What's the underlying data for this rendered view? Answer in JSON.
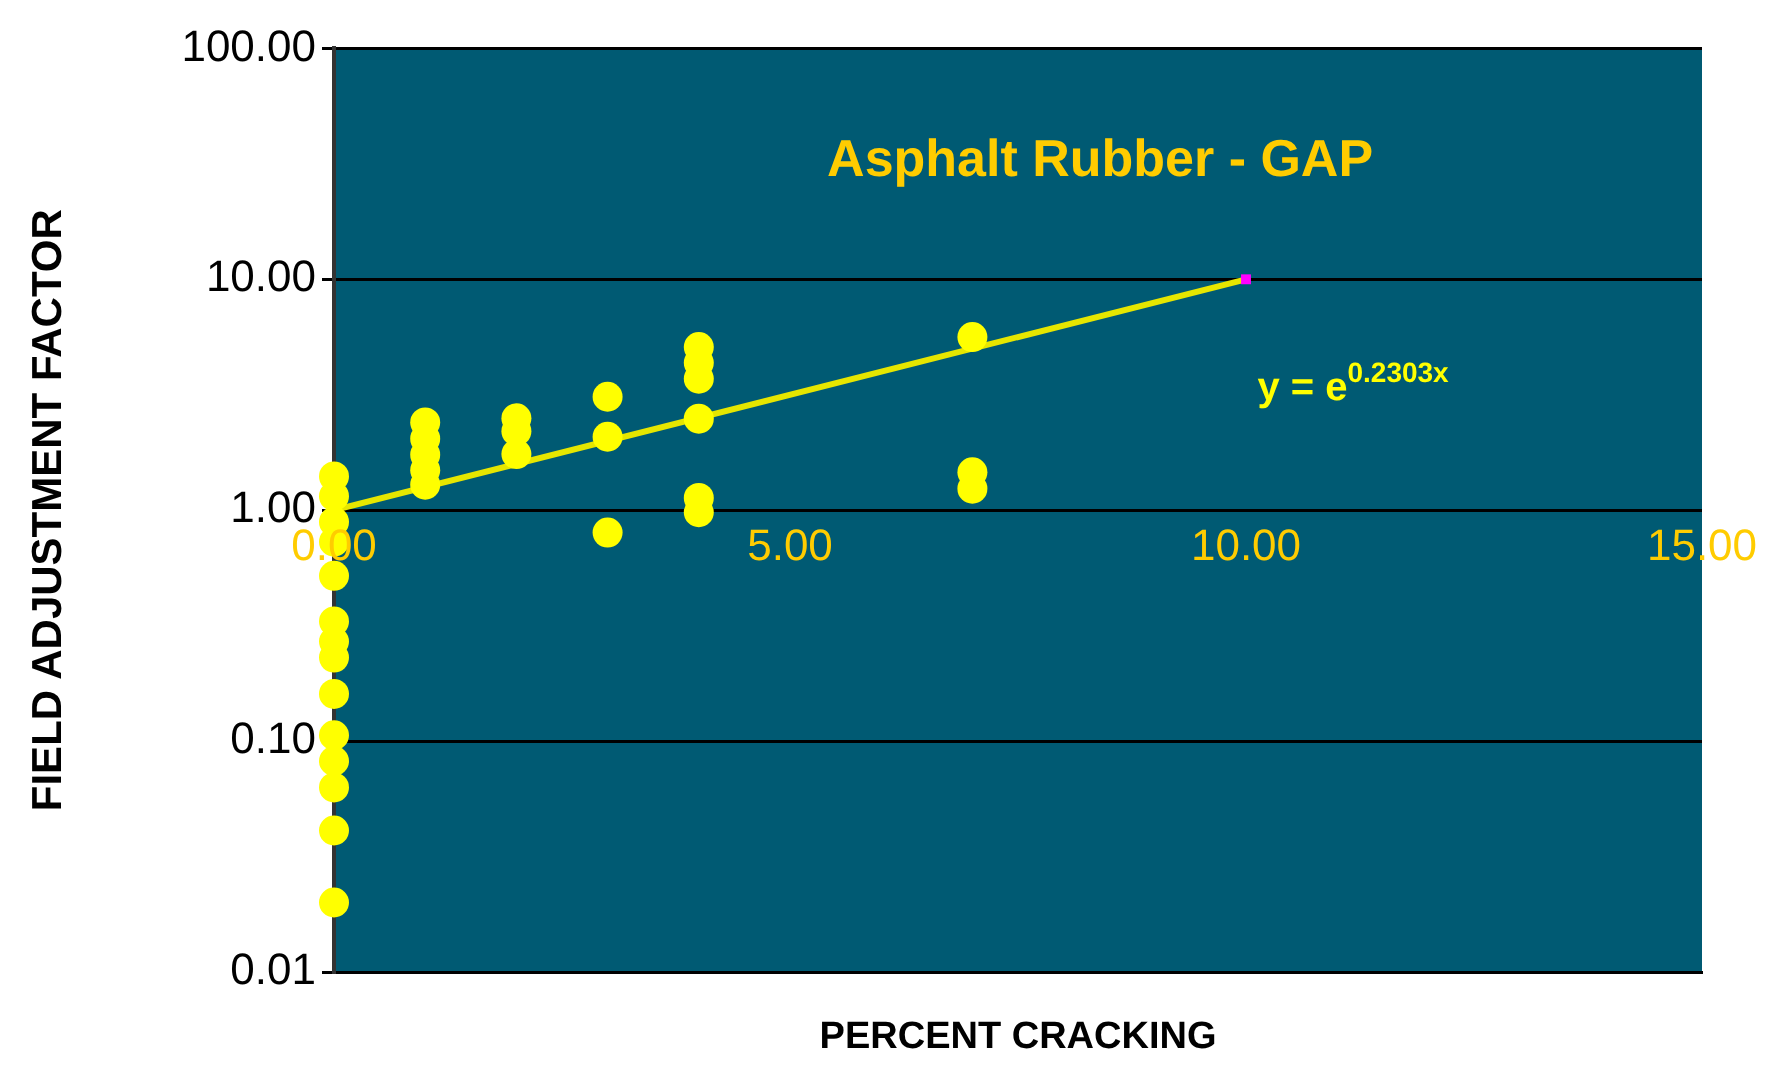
{
  "chart_data": {
    "type": "scatter",
    "title": "Asphalt Rubber - GAP",
    "xlabel": "PERCENT CRACKING",
    "ylabel": "FIELD ADJUSTMENT FACTOR",
    "annotations": [
      "y = e$^{0.2303x}$"
    ],
    "xlim": [
      0,
      15
    ],
    "xticks": [
      {
        "value": 0,
        "label": "0.00"
      },
      {
        "value": 5,
        "label": "5.00"
      },
      {
        "value": 10,
        "label": "10.00"
      },
      {
        "value": 15,
        "label": "15.00"
      }
    ],
    "ylim": [
      0.01,
      100
    ],
    "yticks": [
      {
        "value": 0.01,
        "label": "0.01"
      },
      {
        "value": 0.1,
        "label": "0.10"
      },
      {
        "value": 1,
        "label": "1.00"
      },
      {
        "value": 10,
        "label": "10.00"
      },
      {
        "value": 100,
        "label": "100.00"
      }
    ],
    "log": "y",
    "grid": "y",
    "legend": false,
    "marker": "circle",
    "series": [
      {
        "type": "scatter",
        "color": "#ffff00",
        "x": [
          0,
          0,
          0,
          0,
          0,
          0,
          0,
          0,
          0,
          0,
          0,
          0,
          0,
          0,
          1,
          1,
          1,
          1,
          1,
          2,
          2,
          2,
          3,
          3,
          3,
          4,
          4,
          4,
          4,
          4,
          4,
          7,
          7,
          7
        ],
        "values": [
          1.4,
          1.15,
          0.89,
          0.73,
          0.52,
          0.33,
          0.27,
          0.23,
          0.16,
          0.106,
          0.082,
          0.063,
          0.041,
          0.02,
          2.4,
          2.04,
          1.74,
          1.49,
          1.29,
          2.5,
          2.2,
          1.75,
          3.1,
          2.08,
          0.8,
          5.09,
          4.35,
          3.71,
          2.49,
          1.13,
          0.98,
          5.62,
          1.46,
          1.24
        ]
      },
      {
        "type": "line",
        "color": "#e6e600",
        "marker": "none",
        "x": [
          0,
          10
        ],
        "values": [
          1,
          10
        ]
      },
      {
        "type": "scatter",
        "color": "#ff00ff",
        "marker": "square",
        "x": [
          10
        ],
        "values": [
          10
        ]
      }
    ]
  }
}
